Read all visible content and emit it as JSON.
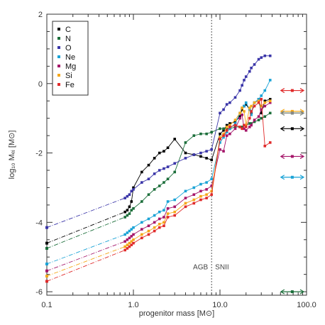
{
  "chart_data": {
    "type": "line",
    "title": "",
    "xlabel": "progenitor mass [M⊙]",
    "ylabel": "log₁₀ Mₑⱼ [M⊙]",
    "xscale": "log",
    "xlim": [
      0.1,
      100.0
    ],
    "ylim": [
      -6.1,
      2.0
    ],
    "x_ticks": [
      0.1,
      1.0,
      10.0,
      100.0
    ],
    "x_tick_labels": [
      "0.1",
      "1.0",
      "10.0",
      "100.0"
    ],
    "y_ticks": [
      -6,
      -4,
      -2,
      0,
      2
    ],
    "y_tick_labels": [
      "-6",
      "-4",
      "-2",
      "0",
      "2"
    ],
    "grid": false,
    "legend_position": "top-left",
    "divider_x": 8.0,
    "annotations": [
      "AGB",
      "SNII"
    ],
    "extrapolation_x": [
      0.1,
      0.8
    ],
    "series": [
      {
        "name": "C",
        "color": "#000000",
        "x": [
          0.8,
          0.85,
          0.9,
          0.95,
          1.0,
          1.25,
          1.5,
          1.75,
          2.0,
          2.25,
          2.5,
          3.0,
          4.0,
          5.0,
          6.0,
          7.0,
          8.0,
          10.0,
          11.0,
          12.0,
          13.0,
          15.0,
          17.0,
          18.0,
          19.0,
          20.0,
          22.0,
          23.0,
          25.0,
          28.0,
          30.0,
          33.0,
          38.0
        ],
        "y": [
          -3.7,
          -3.65,
          -3.55,
          -3.4,
          -3.0,
          -2.55,
          -2.35,
          -2.15,
          -2.0,
          -1.95,
          -1.85,
          -1.6,
          -2.0,
          -2.05,
          -2.1,
          -2.15,
          -2.2,
          -1.45,
          -1.35,
          -1.2,
          -1.15,
          -1.1,
          -0.95,
          -0.75,
          -0.65,
          -0.6,
          -0.75,
          -0.85,
          -0.55,
          -0.45,
          -0.85,
          -0.5,
          -0.45
        ],
        "extrapolation_y": [
          -4.6,
          -3.7
        ]
      },
      {
        "name": "N",
        "color": "#1b6e3a",
        "x": [
          0.8,
          0.85,
          0.9,
          0.95,
          1.0,
          1.25,
          1.5,
          1.75,
          2.0,
          2.25,
          2.5,
          3.0,
          4.0,
          5.0,
          6.0,
          7.0,
          8.0,
          10.0,
          11.0,
          12.0,
          13.0,
          15.0,
          17.0,
          18.0,
          19.0,
          20.0,
          22.0,
          23.0,
          25.0,
          28.0,
          30.0,
          33.0,
          38.0
        ],
        "y": [
          -3.85,
          -3.8,
          -3.75,
          -3.65,
          -3.6,
          -3.4,
          -3.2,
          -3.05,
          -2.95,
          -2.85,
          -2.75,
          -2.55,
          -1.7,
          -1.5,
          -1.45,
          -1.45,
          -1.4,
          -1.3,
          -1.3,
          -1.3,
          -1.3,
          -1.25,
          -1.25,
          -1.25,
          -1.2,
          -1.2,
          -1.15,
          -1.15,
          -1.1,
          -1.05,
          -1.0,
          -0.95,
          -0.85
        ],
        "extrapolation_y": [
          -4.75,
          -3.85
        ]
      },
      {
        "name": "O",
        "color": "#3a35a8",
        "x": [
          0.8,
          0.85,
          0.9,
          0.95,
          1.0,
          1.25,
          1.5,
          1.75,
          2.0,
          2.25,
          2.5,
          3.0,
          4.0,
          5.0,
          6.0,
          7.0,
          8.0,
          10.0,
          11.0,
          12.0,
          13.0,
          15.0,
          17.0,
          18.0,
          19.0,
          20.0,
          22.0,
          23.0,
          25.0,
          28.0,
          30.0,
          33.0,
          38.0
        ],
        "y": [
          -3.3,
          -3.25,
          -3.2,
          -3.1,
          -3.05,
          -2.85,
          -2.75,
          -2.6,
          -2.5,
          -2.45,
          -2.4,
          -2.3,
          -2.15,
          -2.05,
          -2.0,
          -1.95,
          -1.9,
          -0.85,
          -0.75,
          -0.6,
          -0.55,
          -0.4,
          -0.2,
          -0.05,
          0.1,
          0.2,
          0.35,
          0.45,
          0.55,
          0.7,
          0.75,
          0.8,
          0.8
        ],
        "extrapolation_y": [
          -4.15,
          -3.3
        ]
      },
      {
        "name": "Ne",
        "color": "#1aa3d6",
        "x": [
          0.8,
          0.85,
          0.9,
          0.95,
          1.0,
          1.25,
          1.5,
          1.75,
          2.0,
          2.25,
          2.5,
          3.0,
          4.0,
          5.0,
          6.0,
          7.0,
          8.0,
          10.0,
          11.0,
          12.0,
          13.0,
          15.0,
          17.0,
          18.0,
          19.0,
          20.0,
          22.0,
          23.0,
          25.0,
          28.0,
          30.0,
          33.0,
          38.0
        ],
        "y": [
          -4.35,
          -4.3,
          -4.25,
          -4.2,
          -4.15,
          -4.0,
          -3.9,
          -3.8,
          -3.7,
          -3.65,
          -3.4,
          -3.35,
          -3.1,
          -3.0,
          -2.9,
          -2.85,
          -2.75,
          -1.7,
          -1.55,
          -1.4,
          -1.3,
          -1.15,
          -0.85,
          -0.7,
          -0.65,
          -0.55,
          -0.75,
          -0.9,
          -0.55,
          -0.45,
          -0.35,
          -0.2,
          0.1
        ],
        "extrapolation_y": [
          -5.2,
          -4.35
        ]
      },
      {
        "name": "Mg",
        "color": "#a5166a",
        "x": [
          0.8,
          0.85,
          0.9,
          0.95,
          1.0,
          1.25,
          1.5,
          1.75,
          2.0,
          2.25,
          2.5,
          3.0,
          4.0,
          5.0,
          6.0,
          7.0,
          8.0,
          10.0,
          11.0,
          12.0,
          13.0,
          15.0,
          17.0,
          18.0,
          19.0,
          20.0,
          22.0,
          23.0,
          25.0,
          28.0,
          30.0,
          33.0,
          38.0
        ],
        "y": [
          -4.55,
          -4.5,
          -4.45,
          -4.4,
          -4.35,
          -4.2,
          -4.1,
          -4.0,
          -3.9,
          -3.85,
          -3.6,
          -3.55,
          -3.3,
          -3.2,
          -3.1,
          -3.05,
          -2.95,
          -1.9,
          -1.95,
          -1.5,
          -1.45,
          -1.3,
          -1.0,
          -0.9,
          -1.3,
          -1.35,
          -1.25,
          -1.2,
          -1.05,
          -0.95,
          -0.75,
          -0.65,
          -0.55
        ],
        "extrapolation_y": [
          -5.4,
          -4.55
        ]
      },
      {
        "name": "Si",
        "color": "#f5a81a",
        "x": [
          0.8,
          0.85,
          0.9,
          0.95,
          1.0,
          1.25,
          1.5,
          1.75,
          2.0,
          2.25,
          2.5,
          3.0,
          4.0,
          5.0,
          6.0,
          7.0,
          8.0,
          10.0,
          11.0,
          12.0,
          13.0,
          15.0,
          17.0,
          18.0,
          19.0,
          20.0,
          22.0,
          23.0,
          25.0,
          28.0,
          30.0,
          33.0,
          38.0
        ],
        "y": [
          -4.7,
          -4.65,
          -4.6,
          -4.55,
          -4.5,
          -4.35,
          -4.25,
          -4.15,
          -4.05,
          -4.0,
          -3.75,
          -3.7,
          -3.45,
          -3.35,
          -3.25,
          -3.2,
          -3.1,
          -1.55,
          -1.45,
          -1.25,
          -1.2,
          -1.05,
          -0.85,
          -0.7,
          -0.8,
          -1.2,
          -0.7,
          -0.65,
          -0.55,
          -0.5,
          -0.65,
          -0.55,
          -0.5
        ],
        "extrapolation_y": [
          -5.55,
          -4.7
        ]
      },
      {
        "name": "Fe",
        "color": "#e02a2a",
        "x": [
          0.8,
          0.85,
          0.9,
          0.95,
          1.0,
          1.25,
          1.5,
          1.75,
          2.0,
          2.25,
          2.5,
          3.0,
          4.0,
          5.0,
          6.0,
          7.0,
          8.0,
          10.0,
          11.0,
          12.0,
          13.0,
          15.0,
          17.0,
          18.0,
          19.0,
          20.0,
          22.0,
          23.0,
          25.0,
          28.0,
          30.0,
          33.0,
          38.0
        ],
        "y": [
          -4.8,
          -4.75,
          -4.7,
          -4.65,
          -4.6,
          -4.45,
          -4.35,
          -4.25,
          -4.15,
          -4.1,
          -3.85,
          -3.8,
          -3.55,
          -3.45,
          -3.35,
          -3.3,
          -3.2,
          -1.6,
          -1.5,
          -1.35,
          -1.25,
          -1.2,
          -1.25,
          -1.3,
          -1.2,
          -1.25,
          -1.0,
          -0.8,
          -0.65,
          -0.55,
          -0.45,
          -1.8,
          -1.7
        ],
        "extrapolation_y": [
          -5.7,
          -4.8
        ]
      }
    ],
    "arrows": [
      {
        "name": "Fe",
        "color": "#e02a2a",
        "x": [
          50,
          100
        ],
        "y": -0.2
      },
      {
        "name": "Si",
        "color": "#f5a81a",
        "x": [
          50,
          100
        ],
        "y": -0.8
      },
      {
        "name": "N",
        "color": "#1b6e3a",
        "x": [
          50,
          100
        ],
        "y": -0.85
      },
      {
        "name": "Ne",
        "color": "#888888",
        "x": [
          50,
          100
        ],
        "y": -0.85
      },
      {
        "name": "C",
        "color": "#000000",
        "x": [
          50,
          100
        ],
        "y": -1.3
      },
      {
        "name": "Mg",
        "color": "#a5166a",
        "x": [
          50,
          100
        ],
        "y": -2.1
      },
      {
        "name": "Ne",
        "color": "#1aa3d6",
        "x": [
          50,
          100
        ],
        "y": -2.7
      },
      {
        "name": "N",
        "color": "#1b6e3a",
        "x": [
          50,
          100
        ],
        "y": -6.0
      }
    ]
  }
}
